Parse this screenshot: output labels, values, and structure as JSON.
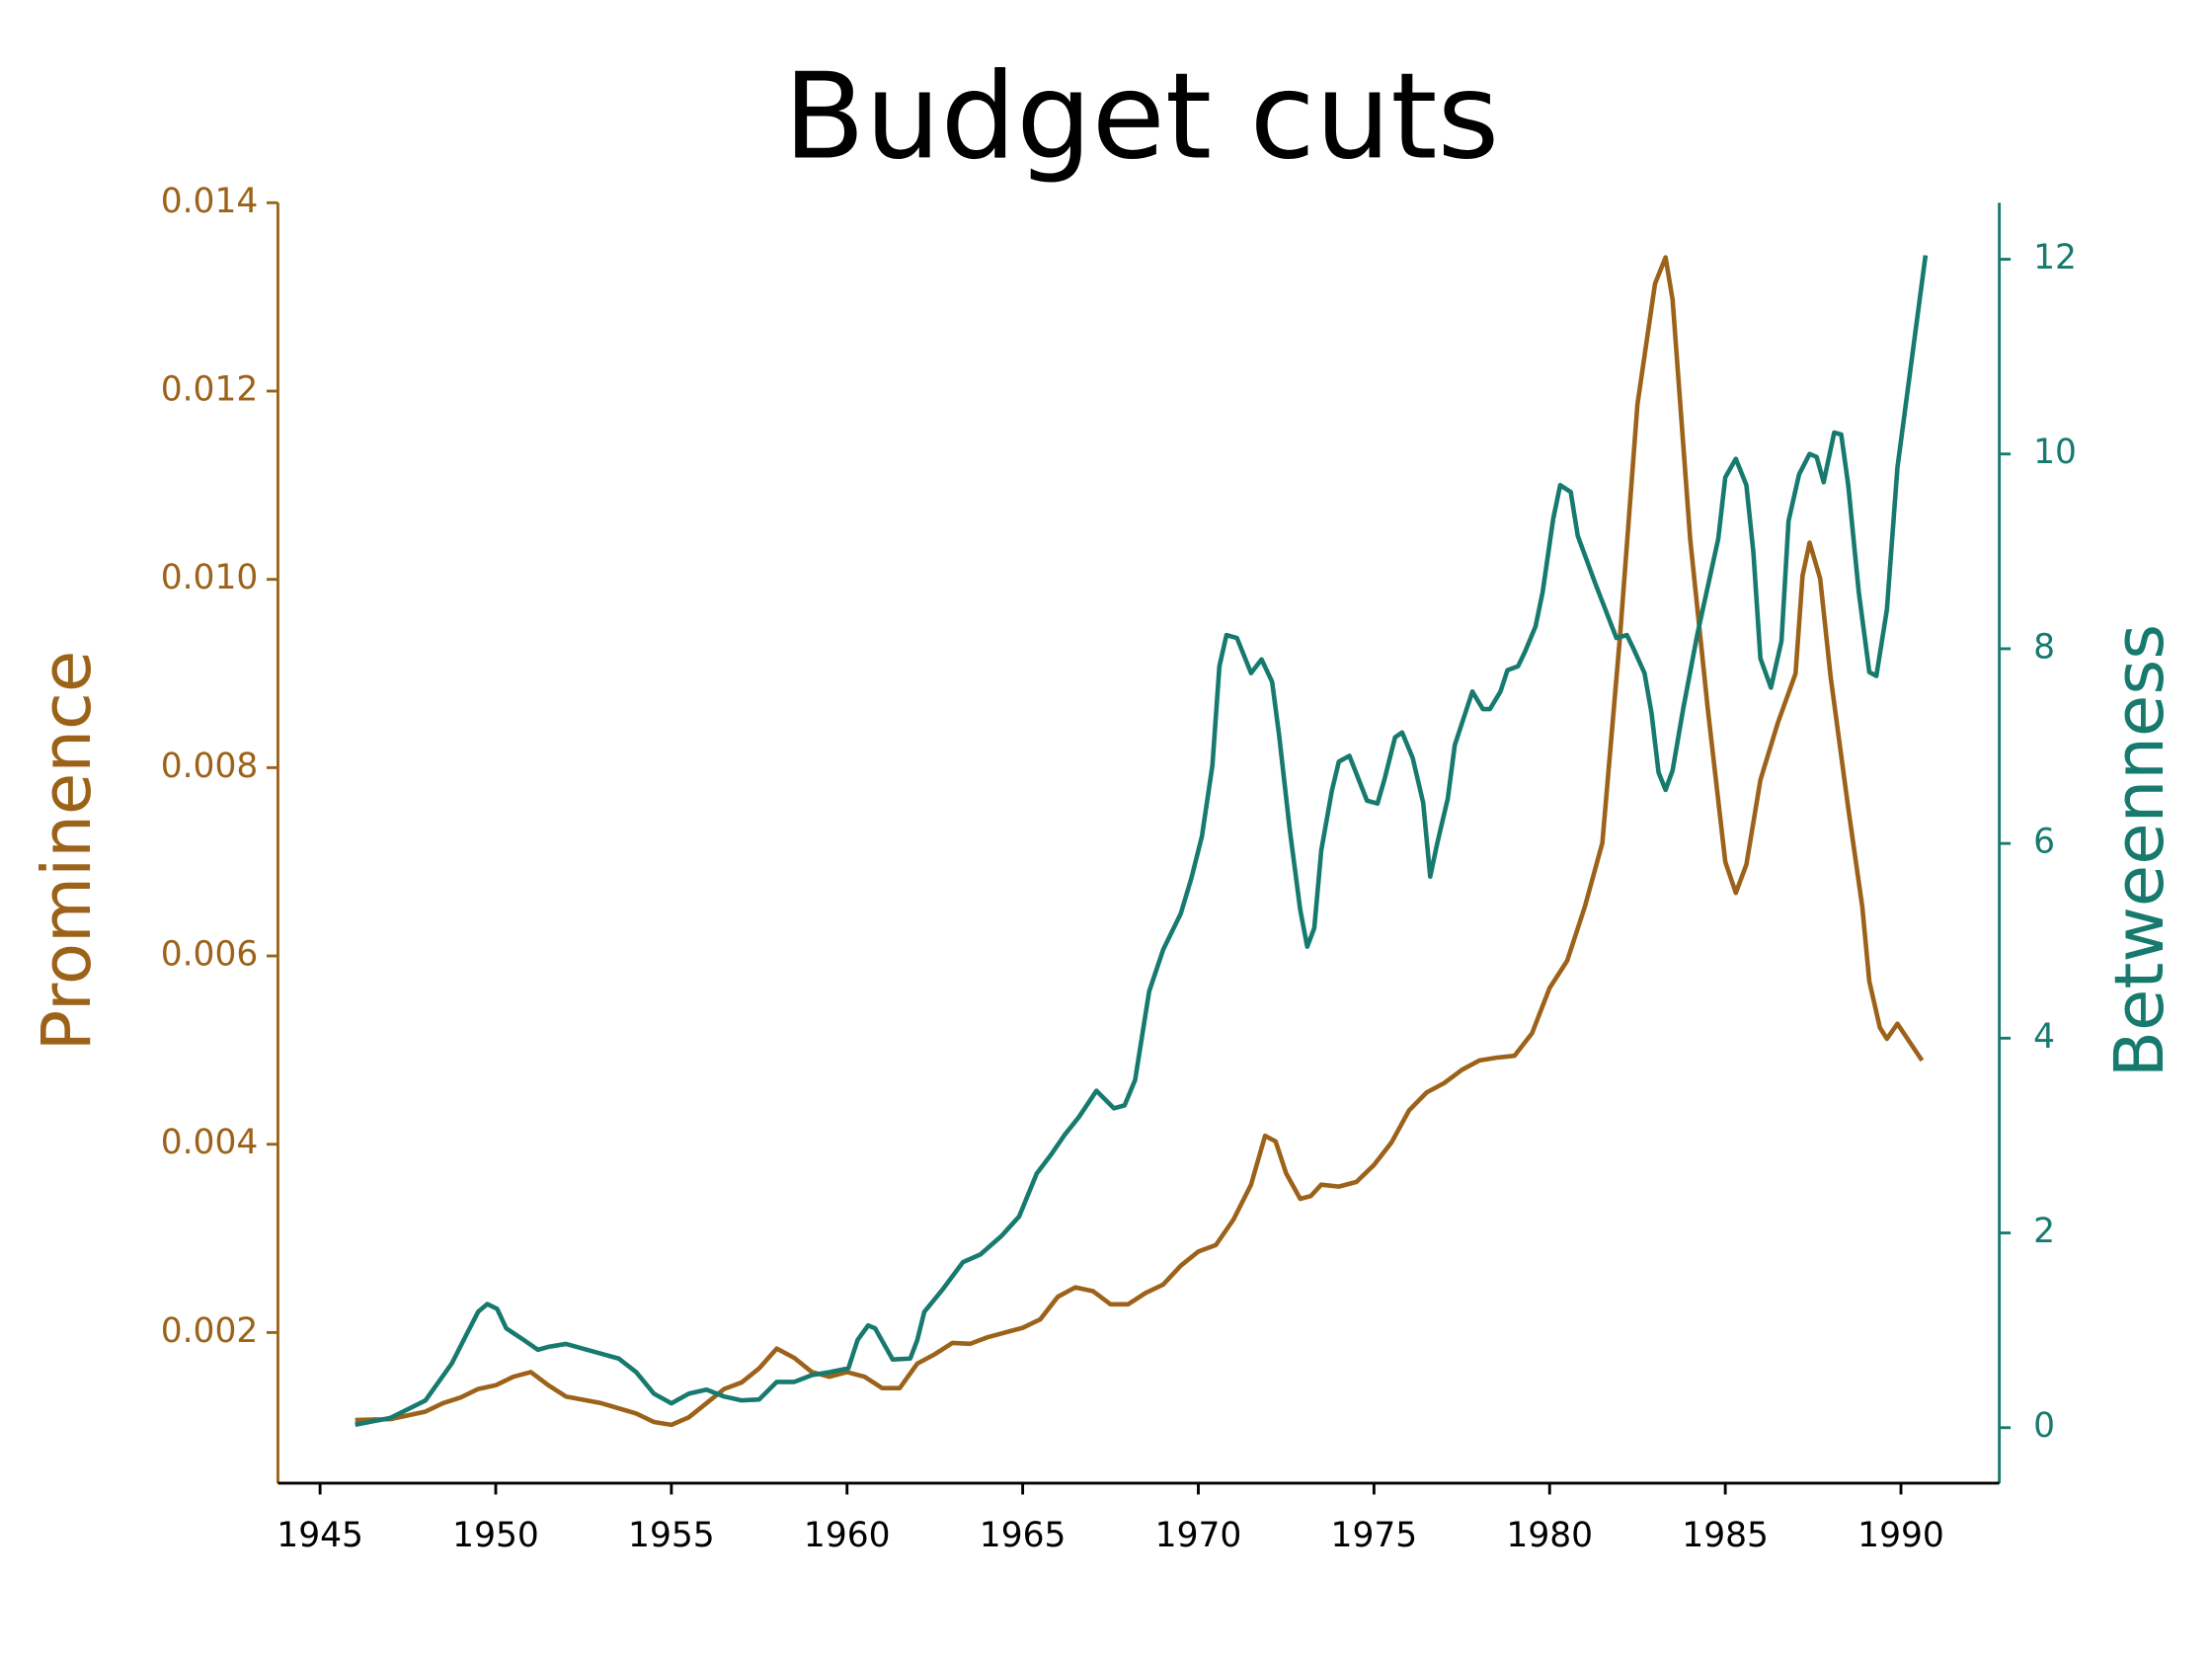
{
  "chart_data": {
    "type": "line",
    "title": "Budget cuts",
    "ylabel": "Prominence",
    "y2label": "Betweenness",
    "xlim": [
      1943.8,
      1992.8
    ],
    "xticks": [
      1945,
      1950,
      1955,
      1960,
      1965,
      1970,
      1975,
      1980,
      1985,
      1990
    ],
    "ylim": [
      0.0004,
      0.014
    ],
    "yticks": [
      0.002,
      0.004,
      0.006,
      0.008,
      {
        "value": 0.01,
        "label": "0.010"
      },
      0.012,
      0.014
    ],
    "y2lim": [
      -0.57,
      12.58
    ],
    "y2ticks": [
      0,
      2,
      4,
      6,
      8,
      10,
      12
    ],
    "ycolor": "#9c6219",
    "y2color": "#177a6e",
    "series": [
      {
        "color": "#9c6219",
        "x": [
          1946,
          1947,
          1948,
          1948.5,
          1949,
          1949.5,
          1950,
          1950.5,
          1951,
          1951.5,
          1952,
          1953,
          1954,
          1954.5,
          1955,
          1955.5,
          1956,
          1956.5,
          1957,
          1957.5,
          1958,
          1958.5,
          1959,
          1959.5,
          1960,
          1960.5,
          1961,
          1961.5,
          1962,
          1962.5,
          1963,
          1963.5,
          1964,
          1964.5,
          1965,
          1965.5,
          1966,
          1966.5,
          1967,
          1967.5,
          1968,
          1968.5,
          1969,
          1969.5,
          1970,
          1970.5,
          1971,
          1971.5,
          1971.9,
          1972.2,
          1972.5,
          1972.9,
          1973.2,
          1973.5,
          1974,
          1974.5,
          1975,
          1975.5,
          1976,
          1976.5,
          1977,
          1977.5,
          1978,
          1978.5,
          1979,
          1979.5,
          1980,
          1980.5,
          1981,
          1981.5,
          1982,
          1982.5,
          1983,
          1983.3,
          1983.5,
          1984,
          1984.5,
          1985,
          1985.3,
          1985.6,
          1986,
          1986.5,
          1987,
          1987.2,
          1987.4,
          1987.7,
          1988,
          1988.5,
          1988.9,
          1989.1,
          1989.4,
          1989.6,
          1989.9,
          1990.6
        ],
        "values": [
          0.00107,
          0.00108,
          0.00116,
          0.00125,
          0.00131,
          0.0014,
          0.00144,
          0.00153,
          0.00158,
          0.00144,
          0.00132,
          0.00125,
          0.00114,
          0.00105,
          0.00102,
          0.0011,
          0.00125,
          0.0014,
          0.00147,
          0.00162,
          0.00183,
          0.00173,
          0.00158,
          0.00153,
          0.00158,
          0.00153,
          0.00141,
          0.00141,
          0.00167,
          0.00177,
          0.00189,
          0.00188,
          0.00195,
          0.002,
          0.00205,
          0.00214,
          0.00238,
          0.00248,
          0.00244,
          0.0023,
          0.0023,
          0.00242,
          0.00251,
          0.00271,
          0.00286,
          0.00293,
          0.0032,
          0.00357,
          0.00409,
          0.00403,
          0.00369,
          0.00342,
          0.00345,
          0.00357,
          0.00355,
          0.0036,
          0.00378,
          0.00402,
          0.00436,
          0.00455,
          0.00465,
          0.00479,
          0.00489,
          0.00492,
          0.00494,
          0.00518,
          0.00566,
          0.00595,
          0.00652,
          0.0072,
          0.00938,
          0.01186,
          0.01314,
          0.01342,
          0.01297,
          0.01043,
          0.00863,
          0.007,
          0.00667,
          0.00697,
          0.00787,
          0.00848,
          0.009,
          0.01004,
          0.01039,
          0.01001,
          0.00896,
          0.00757,
          0.00652,
          0.00573,
          0.00524,
          0.00512,
          0.00528,
          0.00489
        ]
      },
      {
        "color": "#177a6e",
        "axis": "y2",
        "x": [
          1946,
          1947,
          1948,
          1948.75,
          1949.2,
          1949.5,
          1949.76,
          1950.04,
          1950.3,
          1950.8,
          1951.2,
          1951.5,
          1952,
          1953,
          1953.5,
          1954,
          1954.5,
          1955,
          1955.5,
          1956,
          1956.5,
          1957,
          1957.5,
          1958,
          1958.5,
          1959,
          1959.5,
          1960.04,
          1960.3,
          1960.6,
          1960.8,
          1961.3,
          1961.8,
          1962,
          1962.2,
          1962.7,
          1963.3,
          1963.8,
          1964.4,
          1964.9,
          1965.4,
          1965.8,
          1966.2,
          1966.6,
          1967.1,
          1967.6,
          1967.9,
          1968.2,
          1968.6,
          1969,
          1969.5,
          1969.8,
          1970.1,
          1970.4,
          1970.6,
          1970.8,
          1971.1,
          1971.5,
          1971.8,
          1972.1,
          1972.3,
          1972.6,
          1972.9,
          1973.1,
          1973.3,
          1973.5,
          1973.8,
          1974,
          1974.3,
          1974.8,
          1975.1,
          1975.3,
          1975.6,
          1975.8,
          1976.1,
          1976.4,
          1976.6,
          1976.8,
          1977.1,
          1977.3,
          1977.8,
          1978.1,
          1978.3,
          1978.6,
          1978.8,
          1979.1,
          1979.3,
          1979.6,
          1979.8,
          1980.1,
          1980.3,
          1980.6,
          1980.8,
          1981.3,
          1981.9,
          1982.2,
          1982.4,
          1982.7,
          1982.9,
          1983.1,
          1983.3,
          1983.5,
          1983.8,
          1984.2,
          1984.8,
          1985,
          1985.3,
          1985.6,
          1985.8,
          1986,
          1986.3,
          1986.6,
          1986.8,
          1987.1,
          1987.4,
          1987.6,
          1987.8,
          1988.1,
          1988.3,
          1988.5,
          1988.8,
          1989.1,
          1989.3,
          1989.6,
          1989.9,
          1990.7
        ],
        "values": [
          0.03,
          0.1,
          0.28,
          0.66,
          0.98,
          1.19,
          1.27,
          1.22,
          1.02,
          0.9,
          0.8,
          0.83,
          0.86,
          0.76,
          0.71,
          0.57,
          0.35,
          0.25,
          0.35,
          0.39,
          0.32,
          0.28,
          0.29,
          0.47,
          0.47,
          0.54,
          0.57,
          0.61,
          0.9,
          1.05,
          1.02,
          0.7,
          0.71,
          0.9,
          1.19,
          1.41,
          1.7,
          1.78,
          1.97,
          2.17,
          2.61,
          2.8,
          3.01,
          3.19,
          3.46,
          3.28,
          3.31,
          3.57,
          4.48,
          4.91,
          5.28,
          5.64,
          6.07,
          6.8,
          7.82,
          8.14,
          8.11,
          7.75,
          7.89,
          7.66,
          7.11,
          6.15,
          5.32,
          4.94,
          5.13,
          5.93,
          6.54,
          6.84,
          6.9,
          6.44,
          6.41,
          6.66,
          7.09,
          7.14,
          6.88,
          6.42,
          5.66,
          6.0,
          6.46,
          7.01,
          7.56,
          7.38,
          7.38,
          7.56,
          7.78,
          7.82,
          7.97,
          8.23,
          8.58,
          9.33,
          9.68,
          9.61,
          9.16,
          8.67,
          8.11,
          8.14,
          7.99,
          7.75,
          7.34,
          6.73,
          6.55,
          6.75,
          7.38,
          8.14,
          9.13,
          9.76,
          9.95,
          9.68,
          8.99,
          7.9,
          7.6,
          8.08,
          9.31,
          9.79,
          10.0,
          9.97,
          9.71,
          10.22,
          10.2,
          9.68,
          8.58,
          7.76,
          7.72,
          8.4,
          9.86,
          12.04
        ]
      }
    ]
  }
}
